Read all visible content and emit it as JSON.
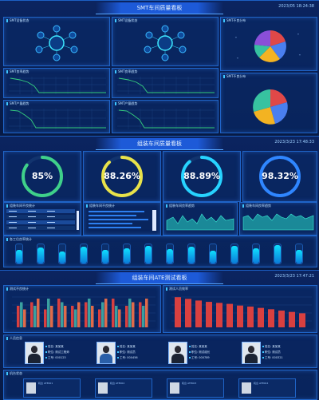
{
  "s1": {
    "title": "SMT车间质量看板",
    "time": "2023/05 18:24:38",
    "panels": [
      {
        "title": "SMT设备状态"
      },
      {
        "title": "SMT设备状态"
      },
      {
        "title": "SMT不良分布"
      },
      {
        "title": "SMT良率趋势"
      },
      {
        "title": "SMT良率趋势"
      },
      {
        "title": "SMT不良分布"
      },
      {
        "title": "SMT产量趋势"
      },
      {
        "title": "SMT产量趋势"
      }
    ]
  },
  "s2": {
    "title": "组装车间质量看板",
    "time": "2023/3/23 17:48:33",
    "gauges": [
      {
        "value": "85%",
        "percent": 0.85,
        "color": "#3fd08a"
      },
      {
        "value": "88.26%",
        "percent": 0.8826,
        "color": "#e8e24a"
      },
      {
        "value": "88.89%",
        "percent": 0.8889,
        "color": "#27d3ff"
      },
      {
        "value": "98.32%",
        "percent": 0.9832,
        "color": "#2f86ff"
      }
    ],
    "row2": [
      {
        "title": "组装车间不良统计"
      },
      {
        "title": "组装车间良率趋势"
      },
      {
        "title": "组装车间良率趋势"
      }
    ],
    "cyl_title": "各工位良率统计",
    "cyl": [
      0.72,
      0.84,
      0.62,
      0.88,
      0.7,
      0.8,
      0.92,
      0.76,
      0.86,
      0.66,
      0.9,
      0.78,
      0.95,
      0.7
    ]
  },
  "s3": {
    "title": "组装车间ATE测试看板",
    "time": "2023/3/23 17:47:21",
    "chart1_title": "测试不良统计",
    "chart2_title": "测试人员效率",
    "people_title": "人员信息",
    "people": [
      {
        "l1": "姓名: 某某某",
        "l2": "职位: 测试工程师",
        "l3": "工号: 000123"
      },
      {
        "l1": "姓名: 某某某",
        "l2": "职位: 测试员",
        "l3": "工号: 000456"
      },
      {
        "l1": "姓名: 某某某",
        "l2": "职位: 测试组长",
        "l3": "工号: 000789"
      },
      {
        "l1": "姓名: 某某某",
        "l2": "职位: 测试员",
        "l3": "工号: 000321"
      }
    ],
    "machines_title": "机台状态",
    "machines": [
      {
        "label": "机台 ATE001"
      },
      {
        "label": "机台 ATE002"
      },
      {
        "label": "机台 ATE003"
      },
      {
        "label": "机台 ATE004"
      }
    ]
  },
  "chart_data": [
    {
      "type": "bar",
      "series": [
        {
          "name": "",
          "values": [
            6,
            7,
            5,
            8,
            6,
            7,
            5,
            8,
            6,
            7
          ]
        },
        {
          "name": "",
          "values": [
            7,
            6,
            8,
            7,
            5,
            8,
            7,
            6,
            8,
            6
          ]
        },
        {
          "name": "",
          "values": [
            5,
            8,
            6,
            6,
            7,
            6,
            8,
            5,
            7,
            8
          ]
        }
      ]
    },
    {
      "type": "bar",
      "values": [
        9,
        8.5,
        8,
        7.6,
        7.3,
        7,
        6.5,
        6.2,
        5.8,
        5.4,
        5,
        4.6,
        4.2
      ]
    }
  ]
}
